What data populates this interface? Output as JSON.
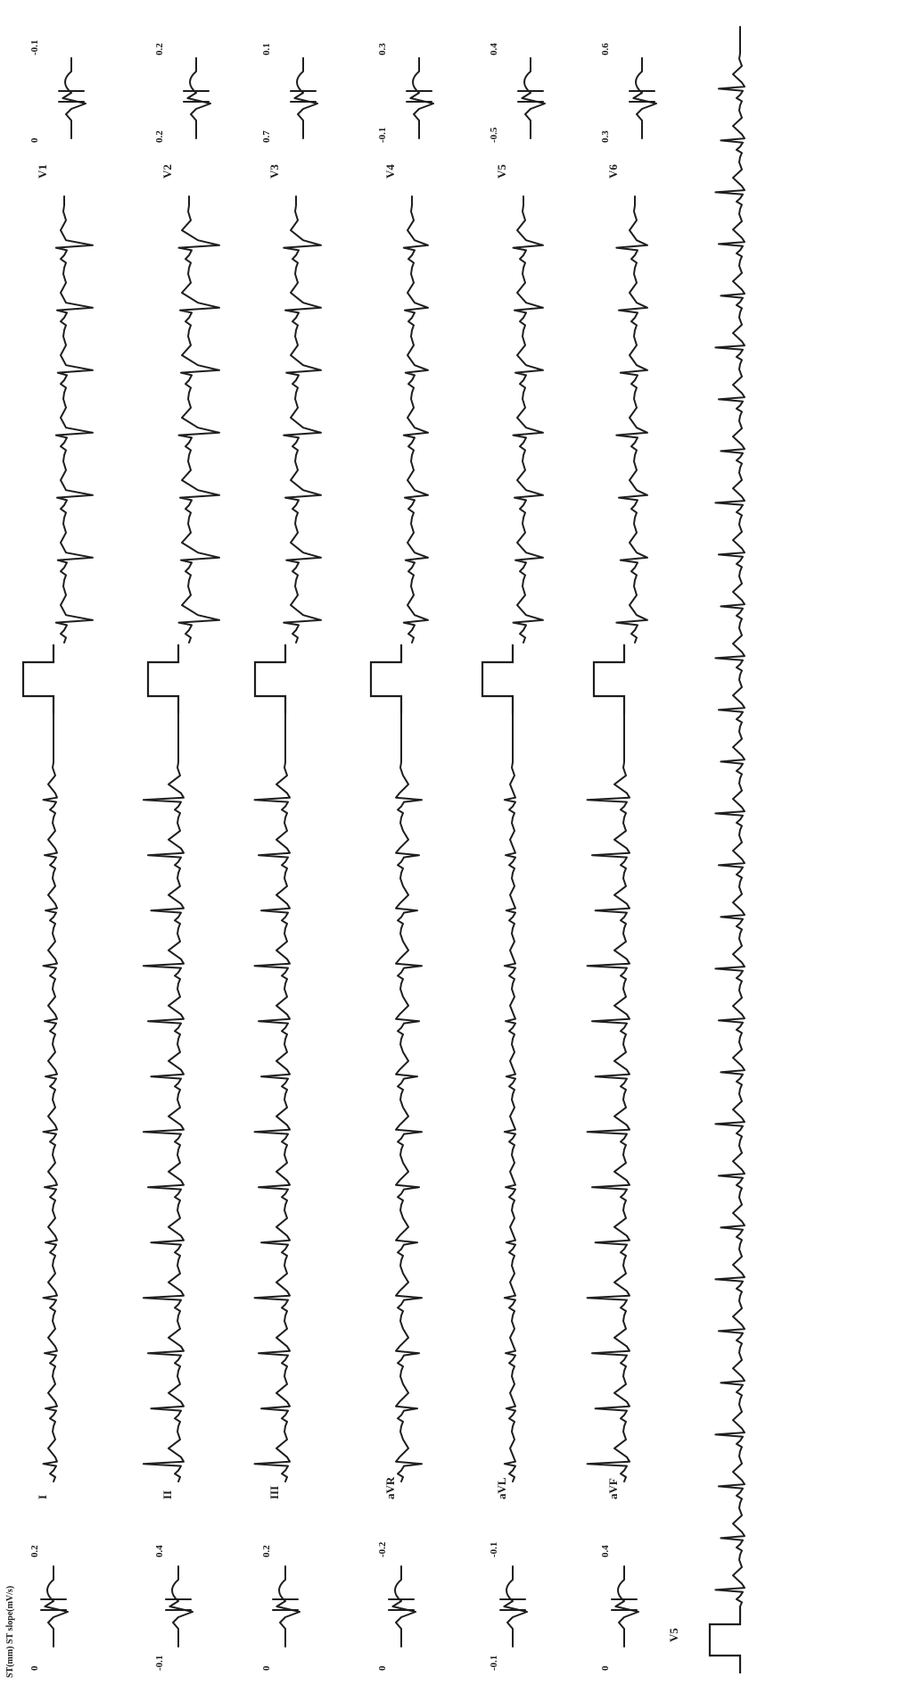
{
  "header": "ST(mm) ST slope(mV/s)",
  "leads": [
    {
      "name": "I",
      "st_left": "0",
      "st_right": "0.2"
    },
    {
      "name": "II",
      "st_left": "-0.1",
      "st_right": "0.4"
    },
    {
      "name": "III",
      "st_left": "0",
      "st_right": "0.2"
    },
    {
      "name": "aVR",
      "st_left": "0",
      "st_right": "-0.2"
    },
    {
      "name": "aVL",
      "st_left": "-0.1",
      "st_right": "-0.1"
    },
    {
      "name": "aVF",
      "st_left": "0",
      "st_right": "0.4"
    }
  ],
  "chest_leads": [
    {
      "name": "V1",
      "st_left": "0",
      "st_right": "-0.1"
    },
    {
      "name": "V2",
      "st_left": "0.2",
      "st_right": "0.2"
    },
    {
      "name": "V3",
      "st_left": "0.7",
      "st_right": "0.1"
    },
    {
      "name": "V4",
      "st_left": "-0.1",
      "st_right": "0.3"
    },
    {
      "name": "V5",
      "st_left": "-0.5",
      "st_right": "0.4"
    },
    {
      "name": "V6",
      "st_left": "0.3",
      "st_right": "0.6"
    }
  ],
  "rhythm_lead": "V5"
}
